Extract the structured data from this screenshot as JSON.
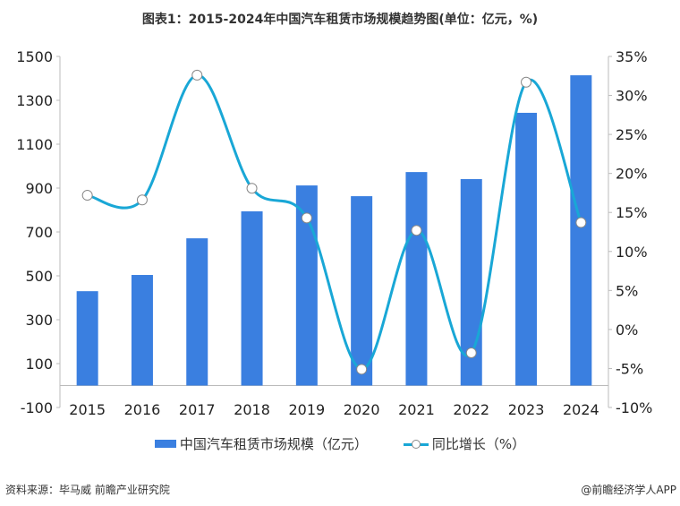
{
  "chart_data": {
    "type": "bar+line",
    "title": "图表1：2015-2024年中国汽车租赁市场规模趋势图(单位：亿元，%)",
    "categories": [
      "2015",
      "2016",
      "2017",
      "2018",
      "2019",
      "2020",
      "2021",
      "2022",
      "2023",
      "2024"
    ],
    "series": [
      {
        "name": "中国汽车租赁市场规模（亿元）",
        "type": "bar",
        "axis": "left",
        "color": "#3a7fe0",
        "values": [
          430,
          504,
          671,
          794,
          912,
          863,
          973,
          941,
          1243,
          1414
        ]
      },
      {
        "name": "同比增长（%）",
        "type": "line",
        "axis": "right",
        "color": "#19a7d6",
        "values": [
          17.2,
          16.6,
          32.6,
          18.1,
          14.3,
          -5.1,
          12.7,
          -3.0,
          31.7,
          13.7
        ]
      }
    ],
    "left_axis": {
      "ylim": [
        -100,
        1500
      ],
      "ticks": [
        "1500",
        "1300",
        "1100",
        "900",
        "700",
        "500",
        "300",
        "100",
        "-100"
      ]
    },
    "right_axis": {
      "ylim": [
        -10,
        35
      ],
      "ticks": [
        "35%",
        "30%",
        "25%",
        "20%",
        "15%",
        "10%",
        "5%",
        "0%",
        "-5%",
        "-10%"
      ]
    },
    "grid": false,
    "legend": "bottom"
  },
  "footer": {
    "source": "资料来源：毕马威 前瞻产业研究院",
    "credit": "@前瞻经济学人APP"
  }
}
